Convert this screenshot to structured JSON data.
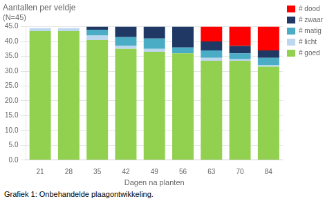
{
  "chart_data": {
    "type": "bar",
    "title": "Aantallen per veldje",
    "subtitle": "(N=45)",
    "xlabel": "Dagen na planten",
    "caption": "Grafiek 1: Onbehandelde plaagontwikkeling.",
    "categories": [
      "21",
      "28",
      "35",
      "42",
      "49",
      "56",
      "63",
      "70",
      "84"
    ],
    "series": [
      {
        "name": "# goed",
        "color": "#92d050",
        "values": [
          43.5,
          43.5,
          40.5,
          37.5,
          36.5,
          36.0,
          33.5,
          33.5,
          31.5
        ]
      },
      {
        "name": "# licht",
        "color": "#bdd7ee",
        "values": [
          1.0,
          1.0,
          1.5,
          1.0,
          1.0,
          0.0,
          1.0,
          0.5,
          0.5
        ]
      },
      {
        "name": "# matig",
        "color": "#4bacc6",
        "values": [
          0.0,
          0.0,
          2.0,
          3.0,
          3.5,
          2.0,
          2.5,
          2.0,
          2.5
        ]
      },
      {
        "name": "# zwaar",
        "color": "#1f3864",
        "values": [
          0.0,
          0.0,
          1.0,
          3.5,
          4.0,
          7.0,
          3.0,
          2.5,
          2.5
        ]
      },
      {
        "name": "# dood",
        "color": "#ff0000",
        "values": [
          0.0,
          0.0,
          0.0,
          0.0,
          0.0,
          0.0,
          5.0,
          6.5,
          8.0
        ]
      }
    ],
    "stacked": true,
    "ylim": [
      0,
      45
    ],
    "yticks": [
      {
        "value": 0,
        "label": "0.0"
      },
      {
        "value": 5,
        "label": "5.0"
      },
      {
        "value": 10,
        "label": "10.0"
      },
      {
        "value": 15,
        "label": "15.0"
      },
      {
        "value": 20,
        "label": "20.0"
      },
      {
        "value": 25,
        "label": "25.0"
      },
      {
        "value": 30,
        "label": "30.0"
      },
      {
        "value": 35,
        "label": "35.0"
      },
      {
        "value": 40,
        "label": "40.0"
      },
      {
        "value": 45,
        "label": "45.0"
      }
    ],
    "grid": true,
    "legend": "right"
  }
}
